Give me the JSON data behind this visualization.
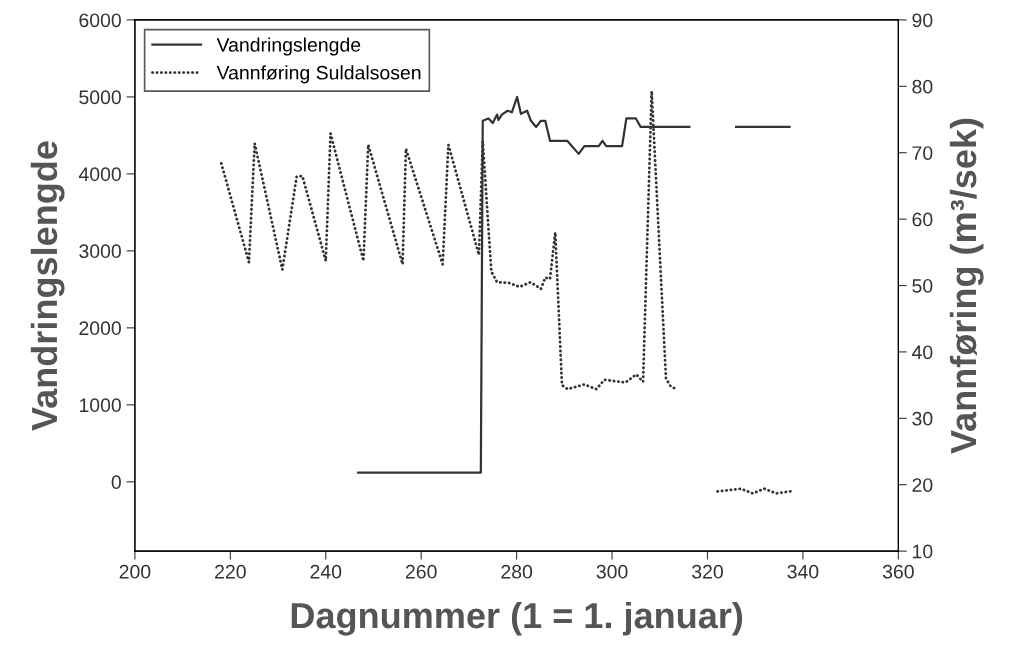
{
  "chart_data": {
    "type": "line",
    "xlabel": "Dagnummer (1 = 1. januar)",
    "ylabel": "Vandringslengde",
    "y2label": "Vannføring (m³/sek)",
    "xlim": [
      200,
      360
    ],
    "xticks": [
      200,
      220,
      240,
      260,
      280,
      300,
      320,
      340,
      360
    ],
    "ylim": [
      -900,
      6000
    ],
    "yticks": [
      0,
      1000,
      2000,
      3000,
      4000,
      5000,
      6000
    ],
    "y2lim": [
      10,
      90
    ],
    "y2ticks": [
      10,
      20,
      30,
      40,
      50,
      60,
      70,
      80,
      90
    ],
    "grid": false,
    "legend": "top left",
    "series": [
      {
        "name": "Vandringslengde",
        "color": "#333333",
        "line_style": "solid",
        "x": [
          246.8,
          272.5,
          272.9,
          274.1,
          275.0,
          275.9,
          276.2,
          276.9,
          278.1,
          279.0,
          280.1,
          280.9,
          282.2,
          283.0,
          284.1,
          285.1,
          286.0,
          287.0,
          290.6,
          293.0,
          294.2,
          297.2,
          298.0,
          298.8,
          302.1,
          303.0,
          305.0,
          306.0,
          316.2,
          320,
          326.0,
          337.2
        ],
        "values": [
          120,
          120,
          4690,
          4720,
          4660,
          4770,
          4700,
          4770,
          4820,
          4800,
          5000,
          4780,
          4820,
          4690,
          4610,
          4690,
          4690,
          4430,
          4430,
          4260,
          4360,
          4360,
          4430,
          4360,
          4360,
          4720,
          4720,
          4610,
          4610,
          null,
          4610,
          4610
        ]
      },
      {
        "name": "Vannføring Suldalsosen",
        "color": "#333333",
        "line_style": "dotted",
        "axis": "y2",
        "x": [
          218.1,
          223.9,
          225.1,
          230.9,
          233.9,
          235.1,
          240.0,
          241.0,
          247.9,
          248.9,
          256.1,
          256.8,
          264.5,
          265.7,
          272.1,
          272.9,
          274.7,
          275.9,
          278.4,
          280.6,
          282.9,
          285.1,
          286.0,
          287.0,
          288.1,
          289.5,
          290.7,
          294.2,
          296.7,
          298.4,
          302.8,
          305.1,
          306.5,
          308.3,
          311.3,
          312.3,
          313.5,
          318,
          322.1,
          327.0,
          329.5,
          331.9,
          334.4,
          337.4
        ],
        "values": [
          68.4,
          53.5,
          71.4,
          52.4,
          66.4,
          66.5,
          53.7,
          72.9,
          53.7,
          71.2,
          53.2,
          70.6,
          53.2,
          71.2,
          54.6,
          71.7,
          52.1,
          50.5,
          50.4,
          49.8,
          50.5,
          49.5,
          51.2,
          51.0,
          58.0,
          35.0,
          34.4,
          35.1,
          34.4,
          35.8,
          35.4,
          36.6,
          35.5,
          79.3,
          36.0,
          34.8,
          34.4,
          null,
          19.0,
          19.4,
          18.7,
          19.4,
          18.7,
          19.0
        ]
      }
    ]
  }
}
